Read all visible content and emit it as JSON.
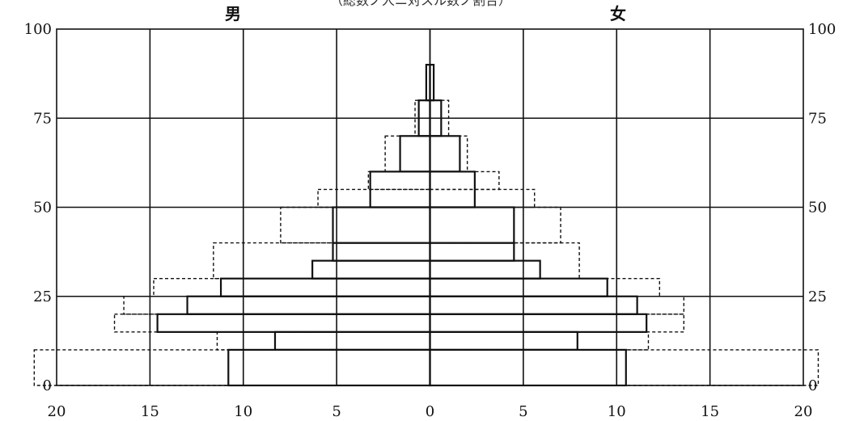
{
  "chart_data": {
    "type": "population-pyramid",
    "title": "（総数ノ人ニ対スル数ノ割合）",
    "left_label": "男",
    "right_label": "女",
    "x_ticks": [
      20,
      15,
      10,
      5,
      0,
      5,
      10,
      15,
      20
    ],
    "y_ticks": [
      0,
      25,
      50,
      75,
      100
    ],
    "xlim": [
      -20,
      20
    ],
    "ylim": [
      0,
      100
    ],
    "band_height": 10,
    "series": [
      {
        "style": "solid",
        "bands": [
          {
            "y0": 0,
            "y1": 10,
            "male": 10.8,
            "female": 10.5
          },
          {
            "y0": 10,
            "y1": 15,
            "male": 8.3,
            "female": 7.9
          },
          {
            "y0": 15,
            "y1": 20,
            "male": 14.6,
            "female": 11.6
          },
          {
            "y0": 20,
            "y1": 25,
            "male": 13.0,
            "female": 11.1
          },
          {
            "y0": 25,
            "y1": 30,
            "male": 11.2,
            "female": 9.5
          },
          {
            "y0": 30,
            "y1": 35,
            "male": 6.3,
            "female": 5.9
          },
          {
            "y0": 35,
            "y1": 40,
            "male": 5.2,
            "female": 4.5
          },
          {
            "y0": 40,
            "y1": 50,
            "male": 5.2,
            "female": 4.5
          },
          {
            "y0": 50,
            "y1": 60,
            "male": 3.2,
            "female": 2.4
          },
          {
            "y0": 60,
            "y1": 70,
            "male": 1.6,
            "female": 1.6
          },
          {
            "y0": 70,
            "y1": 80,
            "male": 0.6,
            "female": 0.6
          },
          {
            "y0": 80,
            "y1": 90,
            "male": 0.2,
            "female": 0.2
          }
        ]
      },
      {
        "style": "dashed",
        "bands": [
          {
            "y0": 0,
            "y1": 10,
            "male": 21.2,
            "female": 20.8
          },
          {
            "y0": 10,
            "y1": 15,
            "male": 11.4,
            "female": 11.7
          },
          {
            "y0": 15,
            "y1": 20,
            "male": 16.9,
            "female": 13.6
          },
          {
            "y0": 20,
            "y1": 25,
            "male": 16.4,
            "female": 13.6
          },
          {
            "y0": 25,
            "y1": 30,
            "male": 14.8,
            "female": 12.3
          },
          {
            "y0": 30,
            "y1": 40,
            "male": 11.6,
            "female": 8.0
          },
          {
            "y0": 40,
            "y1": 50,
            "male": 8.0,
            "female": 7.0
          },
          {
            "y0": 50,
            "y1": 55,
            "male": 6.0,
            "female": 5.6
          },
          {
            "y0": 55,
            "y1": 60,
            "male": 3.3,
            "female": 3.7
          },
          {
            "y0": 60,
            "y1": 70,
            "male": 2.4,
            "female": 2.0
          },
          {
            "y0": 70,
            "y1": 80,
            "male": 0.8,
            "female": 1.0
          },
          {
            "y0": 80,
            "y1": 90,
            "male": 0.2,
            "female": 0.2
          }
        ]
      }
    ]
  }
}
